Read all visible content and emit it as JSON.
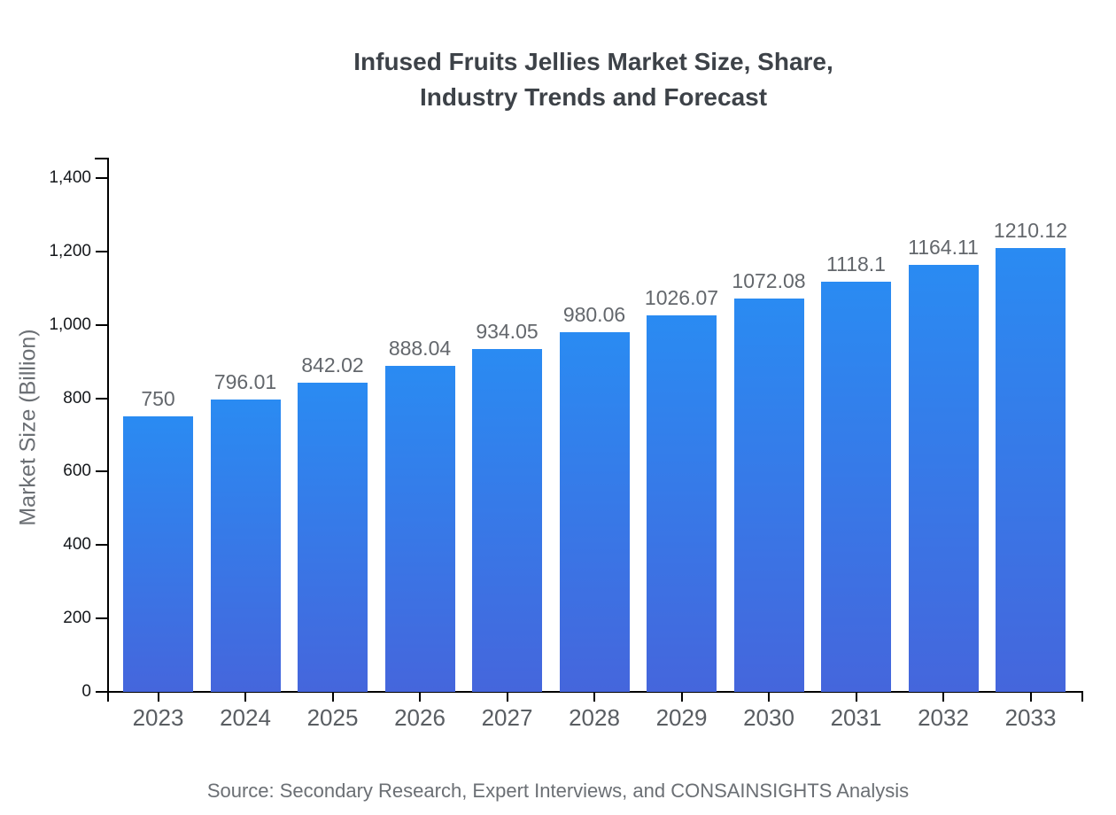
{
  "title": {
    "line1": "Infused Fruits Jellies Market Size, Share,",
    "line2": "Industry Trends and Forecast"
  },
  "y_axis": {
    "label": "Market Size (Billion)",
    "tick_labels": [
      "0",
      "200",
      "400",
      "600",
      "800",
      "1,000",
      "1,200",
      "1,400"
    ],
    "tick_values": [
      0,
      200,
      400,
      600,
      800,
      1000,
      1200,
      1400
    ]
  },
  "source": "Source: Secondary Research, Expert Interviews, and CONSAINSIGHTS Analysis",
  "colors": {
    "bar_gradient_top": "#2a8bf2",
    "bar_gradient_bottom": "#4566dc",
    "axis": "#000000",
    "title_text": "#3d4248",
    "value_label_text": "#63676c",
    "year_label_text": "#595d62",
    "tick_label_text": "#15181c",
    "source_text": "#6b6f74"
  },
  "chart_data": {
    "type": "bar",
    "title": "Infused Fruits Jellies Market Size, Share, Industry Trends and Forecast",
    "categories": [
      "2023",
      "2024",
      "2025",
      "2026",
      "2027",
      "2028",
      "2029",
      "2030",
      "2031",
      "2032",
      "2033"
    ],
    "values": [
      750,
      796.01,
      842.02,
      888.04,
      934.05,
      980.06,
      1026.07,
      1072.08,
      1118.1,
      1164.11,
      1210.12
    ],
    "value_labels": [
      "750",
      "796.01",
      "842.02",
      "888.04",
      "934.05",
      "980.06",
      "1026.07",
      "1072.08",
      "1118.1",
      "1164.11",
      "1210.12"
    ],
    "xlabel": "",
    "ylabel": "Market Size (Billion)",
    "ylim": [
      0,
      1400
    ],
    "ytick_step": 200,
    "grid": false,
    "legend": false,
    "bar_gradient": [
      "#2a8bf2",
      "#4566dc"
    ]
  }
}
